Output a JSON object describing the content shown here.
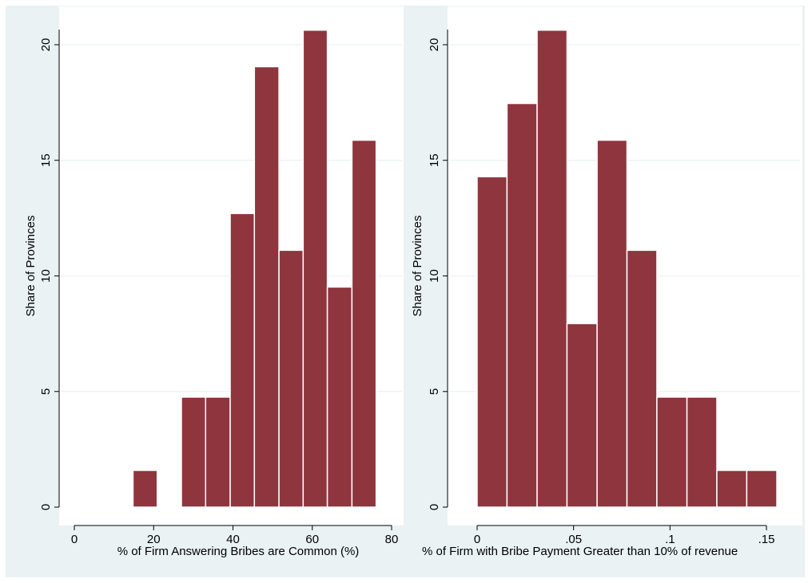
{
  "colors": {
    "background": "#eaf2f3",
    "plot_area": "#ffffff",
    "bar_fill": "#8f353e",
    "bar_edge": "#ffffff",
    "grid": "#eaf2f3"
  },
  "chart_data": [
    {
      "type": "bar",
      "subtype": "histogram",
      "xlabel": "% of Firm Answering Bribes are Common (%)",
      "ylabel": "Share of Provinces",
      "xlim": [
        -2.5,
        82
      ],
      "ylim": [
        0,
        21
      ],
      "xticks": [
        0,
        20,
        40,
        60,
        80
      ],
      "xtick_labels": [
        "0",
        "20",
        "40",
        "60",
        "80"
      ],
      "yticks": [
        0,
        5,
        10,
        15,
        20
      ],
      "ytick_labels": [
        "0",
        "5",
        "10",
        "15",
        "20"
      ],
      "grid": true,
      "bins": [
        {
          "x0": 14.8,
          "x1": 20.9,
          "value": 1.59
        },
        {
          "x0": 27.0,
          "x1": 33.1,
          "value": 4.76
        },
        {
          "x0": 33.1,
          "x1": 39.3,
          "value": 4.76
        },
        {
          "x0": 39.3,
          "x1": 45.4,
          "value": 12.7
        },
        {
          "x0": 45.4,
          "x1": 51.6,
          "value": 19.05
        },
        {
          "x0": 51.6,
          "x1": 57.7,
          "value": 11.11
        },
        {
          "x0": 57.7,
          "x1": 63.8,
          "value": 20.63
        },
        {
          "x0": 63.8,
          "x1": 70.0,
          "value": 9.52
        },
        {
          "x0": 70.0,
          "x1": 76.1,
          "value": 15.87
        }
      ]
    },
    {
      "type": "bar",
      "subtype": "histogram",
      "xlabel": "% of Firm with Bribe Payment Greater than 10% of revenue",
      "ylabel": "Share of Provinces",
      "xlim": [
        -0.012,
        0.157
      ],
      "ylim": [
        0,
        21
      ],
      "xticks": [
        0,
        0.05,
        0.1,
        0.15
      ],
      "xtick_labels": [
        "0",
        ".05",
        ".1",
        ".15"
      ],
      "yticks": [
        0,
        5,
        10,
        15,
        20
      ],
      "ytick_labels": [
        "0",
        "5",
        "10",
        "15",
        "20"
      ],
      "grid": true,
      "bins": [
        {
          "x0": 0.0,
          "x1": 0.0155,
          "value": 14.29
        },
        {
          "x0": 0.0155,
          "x1": 0.0311,
          "value": 17.46
        },
        {
          "x0": 0.0311,
          "x1": 0.0466,
          "value": 20.63
        },
        {
          "x0": 0.0466,
          "x1": 0.0622,
          "value": 7.94
        },
        {
          "x0": 0.0622,
          "x1": 0.0777,
          "value": 15.87
        },
        {
          "x0": 0.0777,
          "x1": 0.0932,
          "value": 11.11
        },
        {
          "x0": 0.0932,
          "x1": 0.1088,
          "value": 4.76
        },
        {
          "x0": 0.1088,
          "x1": 0.1243,
          "value": 4.76
        },
        {
          "x0": 0.1243,
          "x1": 0.1398,
          "value": 1.59
        },
        {
          "x0": 0.1398,
          "x1": 0.1554,
          "value": 1.59
        }
      ]
    }
  ]
}
